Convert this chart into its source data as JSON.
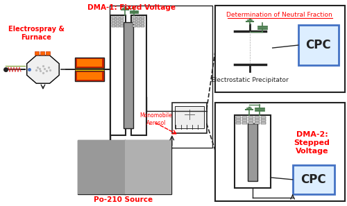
{
  "bg_color": "#ffffff",
  "red_color": "#ff0000",
  "dark_color": "#222222",
  "green_color": "#4a7c4e",
  "blue_color": "#4472c4",
  "labels": {
    "electrospray": "Electrospray &\nFurnace",
    "dma1": "DMA-1: Fixed Voltage",
    "dma2": "DMA-2:\nStepped\nVoltage",
    "neutral": "Determination of Neutral Fraction",
    "cpc": "CPC",
    "ep": "Electrostatic Precipitator",
    "po210": "Po-210 Source",
    "monomobile": "Monomobile\nAerosol"
  }
}
